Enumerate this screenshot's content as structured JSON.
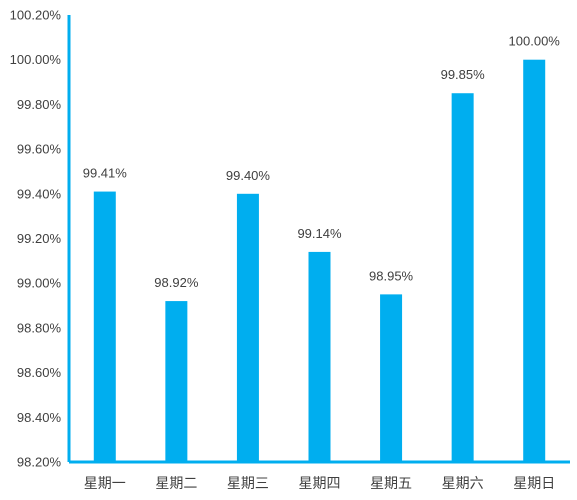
{
  "chart_data": {
    "type": "bar",
    "title": "",
    "xlabel": "",
    "ylabel": "",
    "categories": [
      "星期一",
      "星期二",
      "星期三",
      "星期四",
      "星期五",
      "星期六",
      "星期日"
    ],
    "values": [
      99.41,
      98.92,
      99.4,
      99.14,
      98.95,
      99.85,
      100.0
    ],
    "data_labels": [
      "99.41%",
      "98.92%",
      "99.40%",
      "99.14%",
      "98.95%",
      "99.85%",
      "100.00%"
    ],
    "ylim": [
      98.2,
      100.2
    ],
    "yticks": [
      98.2,
      98.4,
      98.6,
      98.8,
      99.0,
      99.2,
      99.4,
      99.6,
      99.8,
      100.0,
      100.2
    ],
    "ytick_labels": [
      "98.20%",
      "98.40%",
      "98.60%",
      "98.80%",
      "99.00%",
      "99.20%",
      "99.40%",
      "99.60%",
      "99.80%",
      "100.00%",
      "100.20%"
    ],
    "grid": false,
    "legend": "none",
    "colors": {
      "bar": "#00AEEF",
      "axis": "#00AEEF",
      "text": "#404040"
    }
  }
}
